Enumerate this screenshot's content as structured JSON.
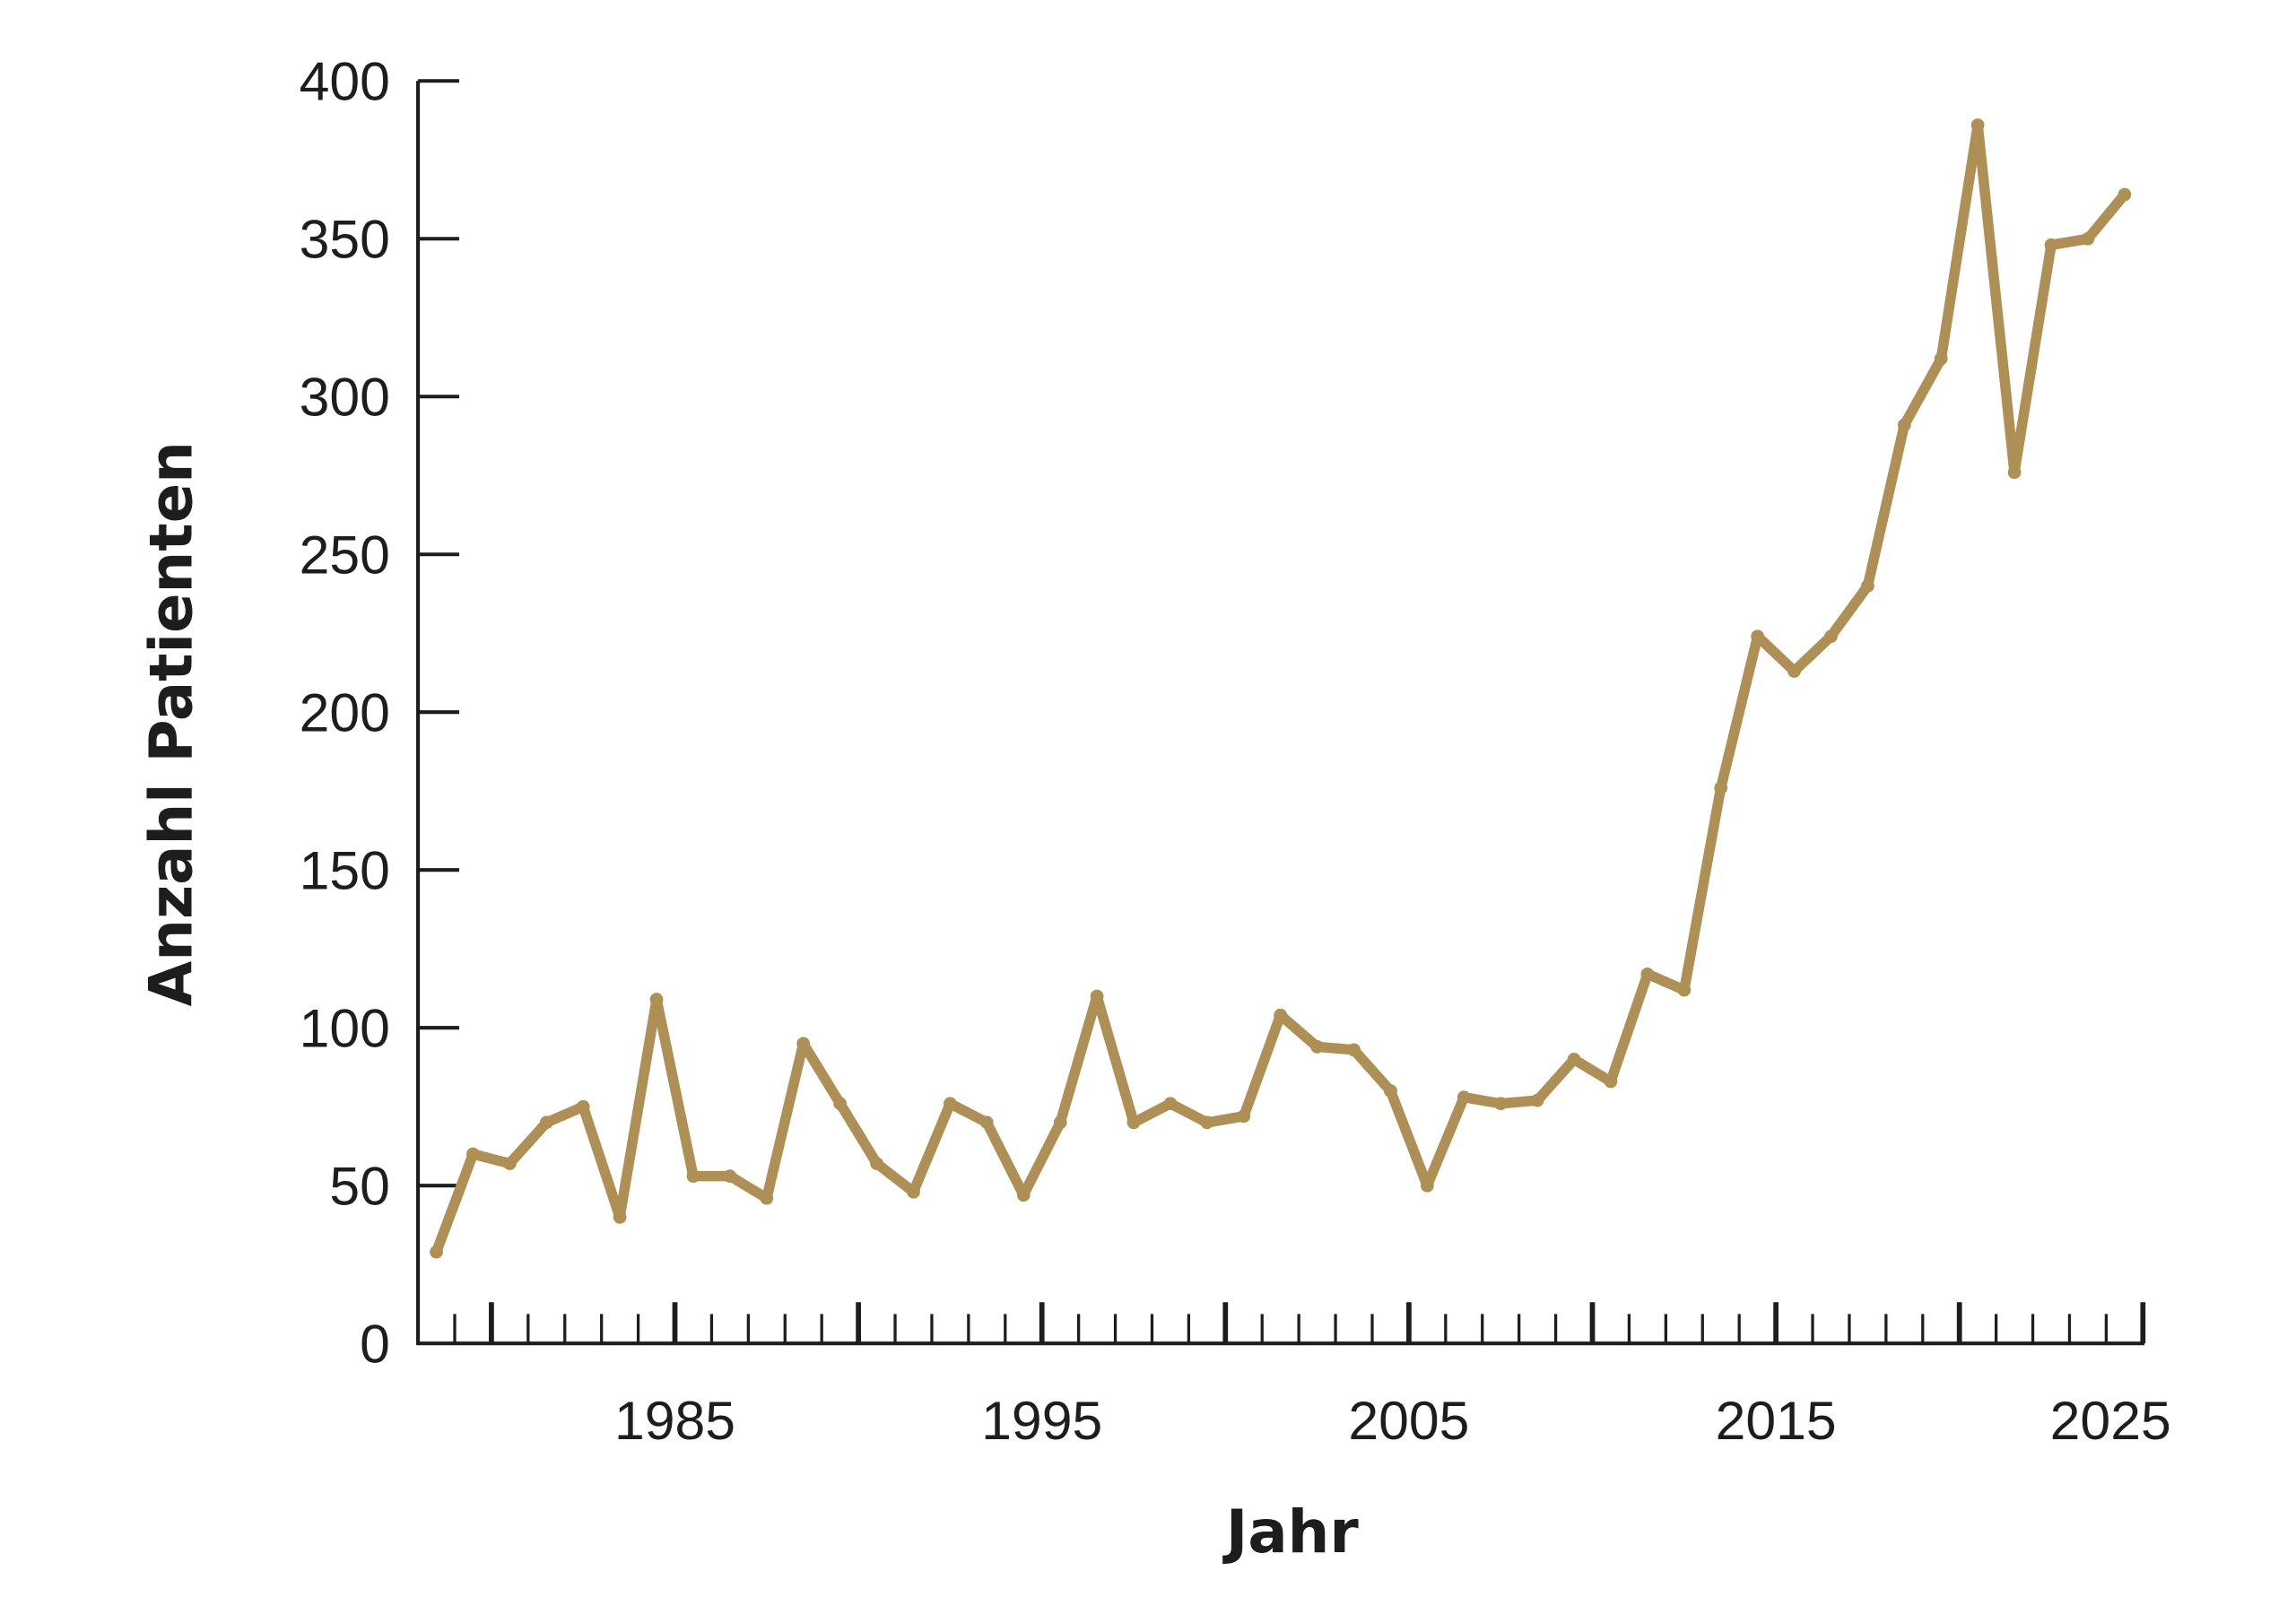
{
  "chart_data": {
    "type": "line",
    "title": "",
    "xlabel": "Jahr",
    "ylabel": "Anzahl Patienten",
    "xlim": [
      1978.5,
      2025.5
    ],
    "ylim": [
      0,
      400
    ],
    "yticks": [
      "0",
      "50",
      "100",
      "150",
      "200",
      "250",
      "300",
      "350",
      "400"
    ],
    "xticks": [
      "1985",
      "1995",
      "2005",
      "2015",
      "2025"
    ],
    "grid": false,
    "legend": "none",
    "line_color": "#ae9056",
    "axis_color": "#1d1d1b",
    "series": [
      {
        "x": [
          1979,
          1980,
          1981,
          1982,
          1983,
          1984,
          1985,
          1986,
          1987,
          1988,
          1989,
          1990,
          1991,
          1992,
          1993,
          1994,
          1995,
          1996,
          1997,
          1998,
          1999,
          2000,
          2001,
          2002,
          2003,
          2004,
          2005,
          2006,
          2007,
          2008,
          2009,
          2010,
          2011,
          2012,
          2013,
          2014,
          2015,
          2016,
          2017,
          2018,
          2019,
          2020,
          2021,
          2022,
          2023,
          2024,
          2025
        ],
        "values": [
          29,
          60,
          57,
          70,
          75,
          40,
          109,
          53,
          53,
          46,
          95,
          76,
          57,
          48,
          76,
          70,
          47,
          70,
          110,
          70,
          76,
          70,
          72,
          104,
          94,
          93,
          80,
          50,
          78,
          76,
          77,
          90,
          83,
          117,
          112,
          176,
          224,
          213,
          224,
          240,
          291,
          312,
          386,
          276,
          348,
          350,
          364
        ]
      }
    ]
  }
}
